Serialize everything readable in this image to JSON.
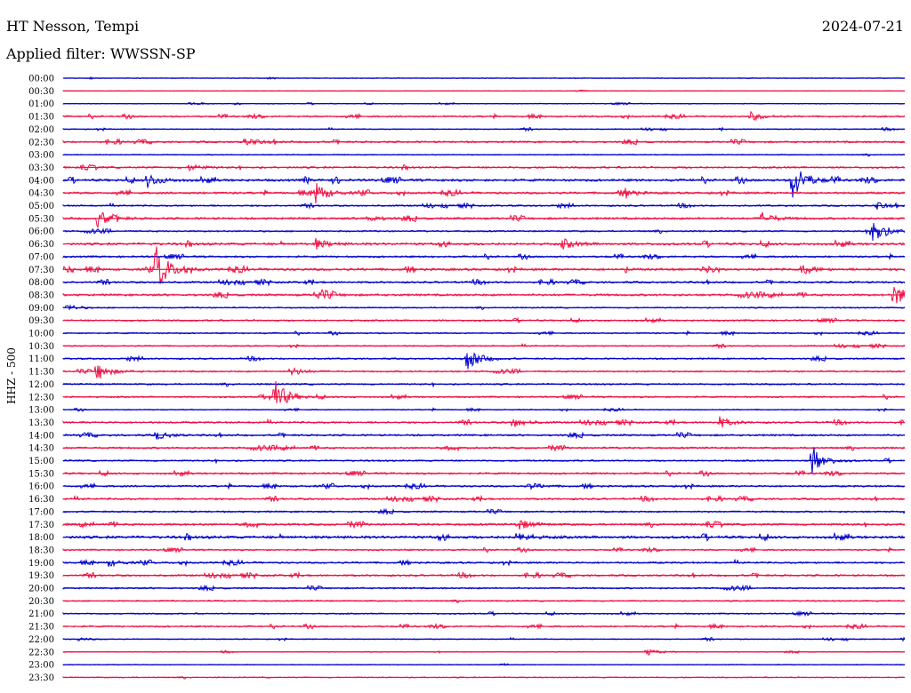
{
  "header": {
    "station": "HT Nesson, Tempi",
    "date": "2024-07-21",
    "filter_label": "Applied filter: WWSSN-SP"
  },
  "chart_data": {
    "type": "helicorder",
    "title": "HT Nesson, Tempi",
    "subtitle": "Applied filter: WWSSN-SP",
    "date": "2024-07-21",
    "ylabel": "HHZ - 500",
    "xlabel": "",
    "colors": [
      "#0000cc",
      "#ee1144"
    ],
    "grid": false,
    "row_labels": [
      "00:00",
      "00:30",
      "01:00",
      "01:30",
      "02:00",
      "02:30",
      "03:00",
      "03:30",
      "04:00",
      "04:30",
      "05:00",
      "05:30",
      "06:00",
      "06:30",
      "07:00",
      "07:30",
      "08:00",
      "08:30",
      "09:00",
      "09:30",
      "10:00",
      "10:30",
      "11:00",
      "11:30",
      "12:00",
      "12:30",
      "13:00",
      "13:30",
      "14:00",
      "14:30",
      "15:00",
      "15:30",
      "16:00",
      "16:30",
      "17:00",
      "17:30",
      "18:00",
      "18:30",
      "19:00",
      "19:30",
      "20:00",
      "20:30",
      "21:00",
      "21:30",
      "22:00",
      "22:30",
      "23:00",
      "23:30"
    ],
    "row_minutes": 30,
    "noise_level": [
      0.3,
      0.2,
      0.3,
      0.6,
      0.4,
      0.7,
      0.4,
      0.7,
      0.9,
      0.8,
      0.6,
      0.8,
      0.6,
      0.9,
      0.7,
      0.9,
      0.7,
      0.8,
      0.5,
      0.6,
      0.5,
      0.5,
      0.6,
      0.6,
      0.6,
      0.6,
      0.4,
      0.7,
      0.7,
      0.7,
      0.6,
      0.7,
      0.7,
      0.7,
      0.6,
      0.8,
      1.0,
      0.6,
      0.7,
      0.7,
      0.6,
      0.5,
      0.5,
      0.6,
      0.4,
      0.3,
      0.3,
      0.4
    ],
    "events": [
      {
        "row": 3,
        "minute": 24.5,
        "amp": 5
      },
      {
        "row": 5,
        "minute": 6.5,
        "amp": 5
      },
      {
        "row": 7,
        "minute": 4.5,
        "amp": 4
      },
      {
        "row": 8,
        "minute": 3.0,
        "amp": 8
      },
      {
        "row": 8,
        "minute": 26.0,
        "amp": 22
      },
      {
        "row": 9,
        "minute": 9.0,
        "amp": 12
      },
      {
        "row": 9,
        "minute": 20.0,
        "amp": 4
      },
      {
        "row": 10,
        "minute": 29.0,
        "amp": 4
      },
      {
        "row": 11,
        "minute": 1.2,
        "amp": 10
      },
      {
        "row": 11,
        "minute": 10.8,
        "amp": 4
      },
      {
        "row": 11,
        "minute": 24.9,
        "amp": 7
      },
      {
        "row": 12,
        "minute": 28.8,
        "amp": 18
      },
      {
        "row": 13,
        "minute": 9.0,
        "amp": 6
      },
      {
        "row": 13,
        "minute": 17.8,
        "amp": 6
      },
      {
        "row": 15,
        "minute": 3.3,
        "amp": 28
      },
      {
        "row": 15,
        "minute": 26.3,
        "amp": 6
      },
      {
        "row": 17,
        "minute": 9.0,
        "amp": 5
      },
      {
        "row": 17,
        "minute": 29.6,
        "amp": 14
      },
      {
        "row": 18,
        "minute": 0.1,
        "amp": 4
      },
      {
        "row": 22,
        "minute": 14.4,
        "amp": 14
      },
      {
        "row": 23,
        "minute": 1.2,
        "amp": 10
      },
      {
        "row": 23,
        "minute": 8.1,
        "amp": 5
      },
      {
        "row": 25,
        "minute": 7.4,
        "amp": 28
      },
      {
        "row": 27,
        "minute": 16.0,
        "amp": 6
      },
      {
        "row": 27,
        "minute": 23.4,
        "amp": 6
      },
      {
        "row": 28,
        "minute": 3.3,
        "amp": 5
      },
      {
        "row": 30,
        "minute": 26.7,
        "amp": 16
      },
      {
        "row": 32,
        "minute": 16.6,
        "amp": 4
      },
      {
        "row": 35,
        "minute": 16.2,
        "amp": 7
      },
      {
        "row": 36,
        "minute": 16.2,
        "amp": 6
      },
      {
        "row": 38,
        "minute": 1.6,
        "amp": 4
      },
      {
        "row": 44,
        "minute": 0.5,
        "amp": 2
      },
      {
        "row": 45,
        "minute": 20.8,
        "amp": 4
      }
    ]
  }
}
